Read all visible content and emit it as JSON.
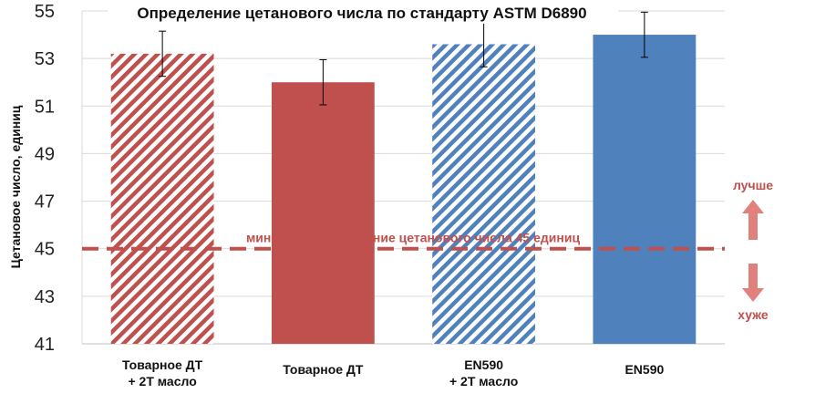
{
  "chart_data": {
    "type": "bar",
    "title": "Определение цетанового числа по стандарту ASTM D6890",
    "ylabel": "Цетановое число, единиц",
    "xlabel": "",
    "ylim": [
      41,
      55
    ],
    "yticks": [
      "41",
      "43",
      "45",
      "47",
      "49",
      "51",
      "53",
      "55"
    ],
    "categories": [
      {
        "line1": "Товарное ДТ",
        "line2": "+ 2Т масло"
      },
      {
        "line1": "Товарное ДТ",
        "line2": ""
      },
      {
        "line1": "EN590",
        "line2": "+ 2Т масло"
      },
      {
        "line1": "EN590",
        "line2": ""
      }
    ],
    "values": [
      53.2,
      52.0,
      53.6,
      54.0
    ],
    "error": [
      0.95,
      0.95,
      0.95,
      0.95
    ],
    "bar_styles": [
      {
        "color": "#c0504d",
        "pattern": "hatched"
      },
      {
        "color": "#c0504d",
        "pattern": "solid"
      },
      {
        "color": "#4f81bd",
        "pattern": "hatched"
      },
      {
        "color": "#4f81bd",
        "pattern": "solid"
      }
    ],
    "grid": "horizontal",
    "reference_line": {
      "value": 45,
      "label": "минимальное значение цетанового числа 45 единиц",
      "color": "#c0504d"
    },
    "annotations": {
      "better": "лучше",
      "worse": "хуже"
    }
  }
}
